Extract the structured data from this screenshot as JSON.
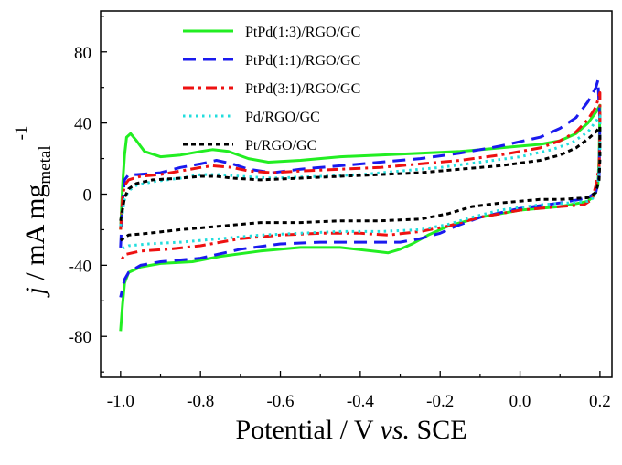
{
  "chart_data": {
    "type": "line",
    "xlabel": {
      "main": "Potential / V ",
      "italic": "vs.",
      "end": " SCE"
    },
    "ylabel": {
      "italic": "j",
      "main": " / mA mg",
      "sub": "metal",
      "sup": "-1"
    },
    "xlim": [
      -1.05,
      0.23
    ],
    "ylim": [
      -103,
      103
    ],
    "xticks": [
      -1.0,
      -0.8,
      -0.6,
      -0.4,
      -0.2,
      0.0,
      0.2
    ],
    "xtick_labels": [
      "-1.0",
      "-0.8",
      "-0.6",
      "-0.4",
      "-0.2",
      "0.0",
      "0.2"
    ],
    "yticks": [
      -80,
      -40,
      0,
      40,
      80
    ],
    "ytick_labels": [
      "-80",
      "-40",
      "0",
      "40",
      "80"
    ],
    "legend_position": "top-left",
    "series": [
      {
        "name": "PtPd(1:3)/RGO/GC",
        "color": "#22ee22",
        "dash": "solid",
        "forward": [
          [
            -1.0,
            -20
          ],
          [
            -0.995,
            5
          ],
          [
            -0.99,
            22
          ],
          [
            -0.985,
            32
          ],
          [
            -0.975,
            34
          ],
          [
            -0.96,
            30
          ],
          [
            -0.94,
            24
          ],
          [
            -0.9,
            21
          ],
          [
            -0.85,
            22
          ],
          [
            -0.8,
            24
          ],
          [
            -0.77,
            25
          ],
          [
            -0.73,
            24
          ],
          [
            -0.68,
            20
          ],
          [
            -0.63,
            18
          ],
          [
            -0.55,
            19
          ],
          [
            -0.45,
            21
          ],
          [
            -0.35,
            22
          ],
          [
            -0.25,
            23
          ],
          [
            -0.15,
            24
          ],
          [
            -0.05,
            26
          ],
          [
            0.05,
            28
          ],
          [
            0.1,
            30
          ],
          [
            0.14,
            34
          ],
          [
            0.17,
            40
          ],
          [
            0.19,
            46
          ],
          [
            0.2,
            50
          ]
        ],
        "backward": [
          [
            0.2,
            50
          ],
          [
            0.198,
            20
          ],
          [
            0.195,
            5
          ],
          [
            0.185,
            -1
          ],
          [
            0.17,
            -4
          ],
          [
            0.15,
            -5
          ],
          [
            0.1,
            -7
          ],
          [
            0.0,
            -9
          ],
          [
            -0.1,
            -13
          ],
          [
            -0.18,
            -18
          ],
          [
            -0.23,
            -23
          ],
          [
            -0.27,
            -28
          ],
          [
            -0.3,
            -31
          ],
          [
            -0.33,
            -33
          ],
          [
            -0.37,
            -32
          ],
          [
            -0.45,
            -30
          ],
          [
            -0.55,
            -30
          ],
          [
            -0.65,
            -32
          ],
          [
            -0.75,
            -35
          ],
          [
            -0.82,
            -38
          ],
          [
            -0.9,
            -39
          ],
          [
            -0.95,
            -41
          ],
          [
            -0.98,
            -44
          ],
          [
            -0.99,
            -50
          ],
          [
            -0.995,
            -62
          ],
          [
            -1.0,
            -77
          ]
        ]
      },
      {
        "name": "PtPd(1:1)/RGO/GC",
        "color": "#1a1aee",
        "dash": "dashed",
        "forward": [
          [
            -1.0,
            -30
          ],
          [
            -0.995,
            -5
          ],
          [
            -0.99,
            8
          ],
          [
            -0.98,
            11
          ],
          [
            -0.96,
            11
          ],
          [
            -0.9,
            12
          ],
          [
            -0.85,
            15
          ],
          [
            -0.8,
            17
          ],
          [
            -0.76,
            19
          ],
          [
            -0.72,
            17
          ],
          [
            -0.68,
            14
          ],
          [
            -0.62,
            12
          ],
          [
            -0.55,
            14
          ],
          [
            -0.45,
            16
          ],
          [
            -0.35,
            18
          ],
          [
            -0.25,
            20
          ],
          [
            -0.15,
            23
          ],
          [
            -0.05,
            27
          ],
          [
            0.05,
            32
          ],
          [
            0.1,
            37
          ],
          [
            0.14,
            43
          ],
          [
            0.17,
            52
          ],
          [
            0.19,
            60
          ],
          [
            0.195,
            64
          ]
        ],
        "backward": [
          [
            0.195,
            64
          ],
          [
            0.2,
            40
          ],
          [
            0.198,
            10
          ],
          [
            0.19,
            1
          ],
          [
            0.17,
            -2
          ],
          [
            0.15,
            -3
          ],
          [
            0.1,
            -5
          ],
          [
            0.0,
            -8
          ],
          [
            -0.1,
            -13
          ],
          [
            -0.16,
            -18
          ],
          [
            -0.2,
            -22
          ],
          [
            -0.25,
            -25
          ],
          [
            -0.3,
            -27
          ],
          [
            -0.4,
            -27
          ],
          [
            -0.5,
            -27
          ],
          [
            -0.6,
            -28
          ],
          [
            -0.7,
            -31
          ],
          [
            -0.8,
            -36
          ],
          [
            -0.9,
            -38
          ],
          [
            -0.95,
            -40
          ],
          [
            -0.98,
            -44
          ],
          [
            -0.99,
            -48
          ],
          [
            -1.0,
            -58
          ]
        ]
      },
      {
        "name": "PtPd(3:1)/RGO/GC",
        "color": "#ee1111",
        "dash": "dashdot",
        "forward": [
          [
            -1.0,
            -20
          ],
          [
            -0.995,
            -2
          ],
          [
            -0.99,
            5
          ],
          [
            -0.98,
            8
          ],
          [
            -0.95,
            10
          ],
          [
            -0.9,
            11
          ],
          [
            -0.85,
            13
          ],
          [
            -0.8,
            15
          ],
          [
            -0.77,
            16
          ],
          [
            -0.72,
            15
          ],
          [
            -0.68,
            13
          ],
          [
            -0.62,
            12
          ],
          [
            -0.55,
            13
          ],
          [
            -0.45,
            14
          ],
          [
            -0.35,
            15
          ],
          [
            -0.25,
            17
          ],
          [
            -0.15,
            19
          ],
          [
            -0.05,
            22
          ],
          [
            0.05,
            26
          ],
          [
            0.1,
            30
          ],
          [
            0.14,
            35
          ],
          [
            0.17,
            42
          ],
          [
            0.19,
            49
          ],
          [
            0.2,
            57
          ]
        ],
        "backward": [
          [
            0.2,
            57
          ],
          [
            0.2,
            35
          ],
          [
            0.198,
            15
          ],
          [
            0.19,
            5
          ],
          [
            0.18,
            -3
          ],
          [
            0.16,
            -6
          ],
          [
            0.1,
            -7
          ],
          [
            0.0,
            -9
          ],
          [
            -0.1,
            -13
          ],
          [
            -0.18,
            -18
          ],
          [
            -0.25,
            -21
          ],
          [
            -0.33,
            -23
          ],
          [
            -0.4,
            -22
          ],
          [
            -0.5,
            -22
          ],
          [
            -0.6,
            -23
          ],
          [
            -0.7,
            -25
          ],
          [
            -0.8,
            -29
          ],
          [
            -0.88,
            -31
          ],
          [
            -0.95,
            -32
          ],
          [
            -0.99,
            -34
          ],
          [
            -1.0,
            -38
          ]
        ]
      },
      {
        "name": "Pd/RGO/GC",
        "color": "#22dddd",
        "dash": "dotted",
        "forward": [
          [
            -1.0,
            -18
          ],
          [
            -0.99,
            -3
          ],
          [
            -0.98,
            2
          ],
          [
            -0.96,
            5
          ],
          [
            -0.92,
            7
          ],
          [
            -0.85,
            9
          ],
          [
            -0.8,
            11
          ],
          [
            -0.75,
            11
          ],
          [
            -0.7,
            10
          ],
          [
            -0.62,
            9
          ],
          [
            -0.5,
            10
          ],
          [
            -0.4,
            11
          ],
          [
            -0.3,
            13
          ],
          [
            -0.2,
            15
          ],
          [
            -0.1,
            18
          ],
          [
            0.0,
            21
          ],
          [
            0.08,
            25
          ],
          [
            0.13,
            29
          ],
          [
            0.17,
            35
          ],
          [
            0.19,
            41
          ],
          [
            0.2,
            44
          ]
        ],
        "backward": [
          [
            0.2,
            44
          ],
          [
            0.2,
            20
          ],
          [
            0.195,
            5
          ],
          [
            0.185,
            -2
          ],
          [
            0.17,
            -4
          ],
          [
            0.12,
            -5
          ],
          [
            0.05,
            -6
          ],
          [
            -0.05,
            -9
          ],
          [
            -0.12,
            -13
          ],
          [
            -0.18,
            -17
          ],
          [
            -0.25,
            -20
          ],
          [
            -0.35,
            -21
          ],
          [
            -0.45,
            -21
          ],
          [
            -0.55,
            -22
          ],
          [
            -0.65,
            -23
          ],
          [
            -0.75,
            -25
          ],
          [
            -0.85,
            -27
          ],
          [
            -0.93,
            -28
          ],
          [
            -0.98,
            -29
          ],
          [
            -1.0,
            -31
          ]
        ]
      },
      {
        "name": "Pt/RGO/GC",
        "color": "#000000",
        "dash": "shortdash",
        "forward": [
          [
            -1.0,
            -15
          ],
          [
            -0.99,
            -2
          ],
          [
            -0.98,
            3
          ],
          [
            -0.96,
            6
          ],
          [
            -0.92,
            8
          ],
          [
            -0.85,
            9
          ],
          [
            -0.8,
            10
          ],
          [
            -0.76,
            10
          ],
          [
            -0.72,
            9
          ],
          [
            -0.65,
            8
          ],
          [
            -0.55,
            9
          ],
          [
            -0.45,
            10
          ],
          [
            -0.35,
            11
          ],
          [
            -0.25,
            12
          ],
          [
            -0.15,
            14
          ],
          [
            -0.05,
            16
          ],
          [
            0.05,
            19
          ],
          [
            0.1,
            22
          ],
          [
            0.14,
            26
          ],
          [
            0.17,
            31
          ],
          [
            0.19,
            35
          ],
          [
            0.2,
            38
          ]
        ],
        "backward": [
          [
            0.2,
            38
          ],
          [
            0.2,
            20
          ],
          [
            0.198,
            8
          ],
          [
            0.19,
            1
          ],
          [
            0.17,
            -2
          ],
          [
            0.1,
            -3
          ],
          [
            0.05,
            -3
          ],
          [
            -0.05,
            -5
          ],
          [
            -0.12,
            -7
          ],
          [
            -0.18,
            -11
          ],
          [
            -0.25,
            -14
          ],
          [
            -0.35,
            -15
          ],
          [
            -0.45,
            -15
          ],
          [
            -0.55,
            -16
          ],
          [
            -0.65,
            -16
          ],
          [
            -0.75,
            -18
          ],
          [
            -0.85,
            -20
          ],
          [
            -0.93,
            -22
          ],
          [
            -0.98,
            -23
          ],
          [
            -1.0,
            -26
          ]
        ]
      }
    ]
  }
}
